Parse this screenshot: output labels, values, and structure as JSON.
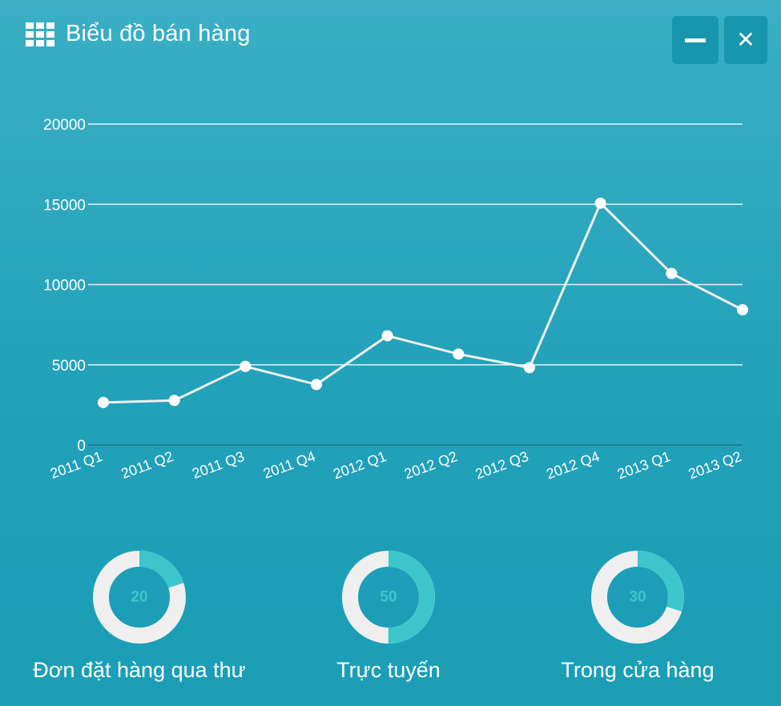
{
  "header": {
    "title": "Biểu đồ bán hàng",
    "icon": "grid-icon"
  },
  "window_controls": {
    "minimize_icon": "minimize-icon",
    "close_icon": "close-icon"
  },
  "chart_data": {
    "type": "line",
    "categories": [
      "2011 Q1",
      "2011 Q2",
      "2011 Q3",
      "2011 Q4",
      "2012 Q1",
      "2012 Q2",
      "2012 Q3",
      "2012 Q4",
      "2013 Q1",
      "2013 Q2"
    ],
    "series": [
      {
        "values": [
          2650,
          2780,
          4900,
          3770,
          6810,
          5670,
          4820,
          15070,
          10690,
          8430
        ]
      }
    ],
    "ylim": [
      0,
      20000
    ],
    "yticks": [
      0,
      5000,
      10000,
      15000,
      20000
    ],
    "grid": true,
    "colors": {
      "line": "#f0f0f0",
      "grid": "#e6f4f7",
      "axis": "#1f7f90"
    }
  },
  "kpis": [
    {
      "value": 20,
      "label": "Đơn đặt hàng qua thư",
      "color": "#3cc6cc",
      "track": "#efefef"
    },
    {
      "value": 50,
      "label": "Trực tuyến",
      "color": "#3cc6cc",
      "track": "#efefef"
    },
    {
      "value": 30,
      "label": "Trong cửa hàng",
      "color": "#3cc6cc",
      "track": "#efefef"
    }
  ]
}
